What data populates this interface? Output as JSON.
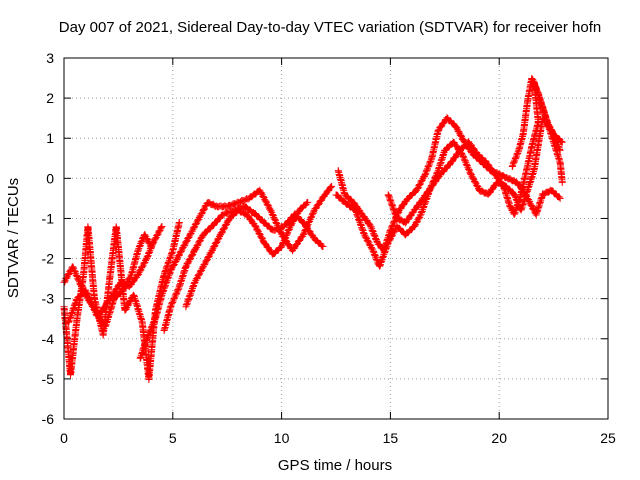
{
  "chart_data": {
    "type": "scatter",
    "title": "Day 007 of 2021, Sidereal Day-to-day VTEC variation (SDTVAR) for receiver hofn",
    "xlabel": "GPS time / hours",
    "ylabel": "SDTVAR / TECUs",
    "xlim": [
      0,
      25
    ],
    "ylim": [
      -6,
      3
    ],
    "xticks": [
      "0",
      "5",
      "10",
      "15",
      "20",
      "25"
    ],
    "yticks": [
      "3",
      "2",
      "1",
      "0",
      "-1",
      "-2",
      "-3",
      "-4",
      "-5",
      "-6"
    ],
    "grid": true,
    "marker": "+",
    "series": [
      {
        "name": "SDTVAR",
        "color": "#ff0000",
        "tracks": [
          [
            [
              0.0,
              -3.2
            ],
            [
              0.3,
              -4.9
            ],
            [
              0.6,
              -3.5
            ],
            [
              0.9,
              -2.4
            ],
            [
              1.1,
              -1.2
            ],
            [
              1.4,
              -3.0
            ],
            [
              1.8,
              -3.9
            ],
            [
              2.1,
              -2.5
            ],
            [
              2.4,
              -1.2
            ],
            [
              2.8,
              -3.3
            ],
            [
              3.2,
              -2.9
            ],
            [
              3.6,
              -3.6
            ],
            [
              3.9,
              -5.0
            ],
            [
              4.2,
              -3.3
            ],
            [
              4.6,
              -2.4
            ],
            [
              5.0,
              -1.8
            ],
            [
              5.3,
              -1.1
            ]
          ],
          [
            [
              0.0,
              -2.6
            ],
            [
              0.4,
              -2.2
            ],
            [
              0.8,
              -2.7
            ],
            [
              1.2,
              -3.1
            ],
            [
              1.6,
              -3.4
            ],
            [
              2.0,
              -3.1
            ],
            [
              2.6,
              -2.6
            ],
            [
              3.0,
              -2.7
            ],
            [
              3.4,
              -2.4
            ],
            [
              3.8,
              -2.0
            ],
            [
              4.1,
              -1.6
            ],
            [
              4.5,
              -1.2
            ]
          ],
          [
            [
              0.2,
              -3.6
            ],
            [
              0.6,
              -3.0
            ],
            [
              1.0,
              -2.8
            ],
            [
              1.5,
              -3.4
            ],
            [
              1.9,
              -3.7
            ],
            [
              2.3,
              -3.0
            ],
            [
              2.7,
              -2.8
            ],
            [
              3.1,
              -2.4
            ],
            [
              3.4,
              -1.8
            ],
            [
              3.7,
              -1.4
            ],
            [
              4.0,
              -1.7
            ]
          ],
          [
            [
              3.5,
              -4.5
            ],
            [
              3.8,
              -4.0
            ],
            [
              4.2,
              -3.5
            ],
            [
              4.5,
              -2.9
            ],
            [
              4.9,
              -2.3
            ],
            [
              5.2,
              -2.0
            ],
            [
              5.5,
              -1.7
            ],
            [
              5.9,
              -1.3
            ],
            [
              6.3,
              -0.9
            ],
            [
              6.6,
              -0.6
            ],
            [
              7.0,
              -0.7
            ],
            [
              7.5,
              -0.7
            ],
            [
              8.0,
              -0.6
            ],
            [
              8.5,
              -0.5
            ],
            [
              9.0,
              -0.3
            ],
            [
              9.5,
              -0.8
            ],
            [
              10.0,
              -1.4
            ],
            [
              10.5,
              -1.8
            ],
            [
              11.0,
              -1.4
            ],
            [
              11.5,
              -0.8
            ],
            [
              12.0,
              -0.4
            ],
            [
              12.3,
              -0.2
            ]
          ],
          [
            [
              4.6,
              -3.8
            ],
            [
              4.9,
              -3.2
            ],
            [
              5.3,
              -2.7
            ],
            [
              5.6,
              -2.2
            ],
            [
              6.0,
              -1.8
            ],
            [
              6.4,
              -1.4
            ],
            [
              6.8,
              -1.2
            ],
            [
              7.3,
              -0.9
            ],
            [
              7.8,
              -0.8
            ],
            [
              8.3,
              -0.7
            ],
            [
              8.8,
              -0.9
            ],
            [
              9.2,
              -1.1
            ],
            [
              9.6,
              -1.3
            ],
            [
              10.1,
              -1.2
            ],
            [
              10.6,
              -0.9
            ],
            [
              11.0,
              -1.1
            ],
            [
              11.5,
              -1.5
            ],
            [
              11.9,
              -1.7
            ]
          ],
          [
            [
              5.6,
              -3.2
            ],
            [
              6.0,
              -2.6
            ],
            [
              6.4,
              -2.2
            ],
            [
              6.8,
              -1.8
            ],
            [
              7.2,
              -1.4
            ],
            [
              7.6,
              -1.0
            ],
            [
              8.0,
              -0.8
            ],
            [
              8.4,
              -0.9
            ],
            [
              8.8,
              -1.2
            ],
            [
              9.2,
              -1.6
            ],
            [
              9.6,
              -1.9
            ],
            [
              10.0,
              -1.7
            ],
            [
              10.4,
              -1.2
            ],
            [
              10.8,
              -0.8
            ],
            [
              11.2,
              -0.6
            ]
          ],
          [
            [
              12.6,
              0.2
            ],
            [
              12.9,
              -0.4
            ],
            [
              13.3,
              -0.6
            ],
            [
              13.7,
              -0.9
            ],
            [
              14.1,
              -1.2
            ],
            [
              14.4,
              -1.6
            ],
            [
              14.7,
              -1.8
            ],
            [
              15.0,
              -1.3
            ],
            [
              15.4,
              -0.8
            ],
            [
              15.8,
              -0.5
            ],
            [
              16.2,
              -0.3
            ],
            [
              16.6,
              0.1
            ],
            [
              16.9,
              0.5
            ],
            [
              17.2,
              1.2
            ],
            [
              17.6,
              1.5
            ],
            [
              18.0,
              1.3
            ],
            [
              18.4,
              0.9
            ],
            [
              18.8,
              0.6
            ],
            [
              19.2,
              0.4
            ],
            [
              19.6,
              0.2
            ],
            [
              20.0,
              0.1
            ],
            [
              20.4,
              0.0
            ],
            [
              20.8,
              -0.1
            ],
            [
              21.1,
              -0.3
            ],
            [
              21.4,
              -0.6
            ],
            [
              21.7,
              -0.9
            ],
            [
              22.0,
              -0.4
            ],
            [
              22.4,
              -0.3
            ],
            [
              22.8,
              -0.5
            ]
          ],
          [
            [
              12.5,
              -0.4
            ],
            [
              12.9,
              -0.6
            ],
            [
              13.4,
              -0.8
            ],
            [
              13.8,
              -1.4
            ],
            [
              14.2,
              -1.8
            ],
            [
              14.5,
              -2.2
            ],
            [
              14.9,
              -1.6
            ],
            [
              15.3,
              -1.2
            ],
            [
              15.7,
              -1.4
            ],
            [
              16.1,
              -1.2
            ],
            [
              16.4,
              -0.9
            ],
            [
              16.8,
              -0.3
            ],
            [
              17.2,
              0.2
            ],
            [
              17.5,
              0.7
            ],
            [
              17.9,
              0.9
            ],
            [
              18.3,
              0.6
            ],
            [
              18.7,
              0.1
            ],
            [
              19.1,
              -0.3
            ],
            [
              19.5,
              -0.4
            ],
            [
              19.9,
              -0.1
            ],
            [
              20.3,
              -0.2
            ],
            [
              20.7,
              -0.4
            ],
            [
              21.0,
              -0.8
            ],
            [
              21.3,
              -0.3
            ],
            [
              21.6,
              0.2
            ],
            [
              22.0,
              1.5
            ],
            [
              22.4,
              1.2
            ],
            [
              22.8,
              0.7
            ]
          ],
          [
            [
              14.9,
              -0.4
            ],
            [
              15.3,
              -1.0
            ],
            [
              15.7,
              -1.1
            ],
            [
              16.1,
              -0.8
            ],
            [
              16.5,
              -0.5
            ],
            [
              16.9,
              -0.2
            ],
            [
              17.3,
              0.1
            ],
            [
              17.8,
              0.4
            ],
            [
              18.2,
              0.7
            ],
            [
              18.6,
              0.9
            ],
            [
              19.0,
              0.6
            ],
            [
              19.4,
              0.4
            ],
            [
              19.8,
              0.1
            ],
            [
              20.2,
              -0.2
            ],
            [
              20.5,
              -0.7
            ],
            [
              20.7,
              -0.9
            ],
            [
              21.0,
              -0.4
            ],
            [
              21.3,
              0.3
            ],
            [
              21.5,
              0.8
            ],
            [
              21.8,
              1.4
            ],
            [
              21.6,
              2.4
            ],
            [
              21.9,
              1.9
            ],
            [
              22.2,
              1.4
            ],
            [
              22.5,
              1.1
            ],
            [
              22.9,
              0.9
            ]
          ],
          [
            [
              20.6,
              0.3
            ],
            [
              20.9,
              0.7
            ],
            [
              21.1,
              1.1
            ],
            [
              21.3,
              1.9
            ],
            [
              21.5,
              2.5
            ],
            [
              21.8,
              2.1
            ],
            [
              22.1,
              1.6
            ],
            [
              22.5,
              0.9
            ],
            [
              22.8,
              0.4
            ],
            [
              22.9,
              -0.1
            ]
          ]
        ]
      }
    ]
  }
}
